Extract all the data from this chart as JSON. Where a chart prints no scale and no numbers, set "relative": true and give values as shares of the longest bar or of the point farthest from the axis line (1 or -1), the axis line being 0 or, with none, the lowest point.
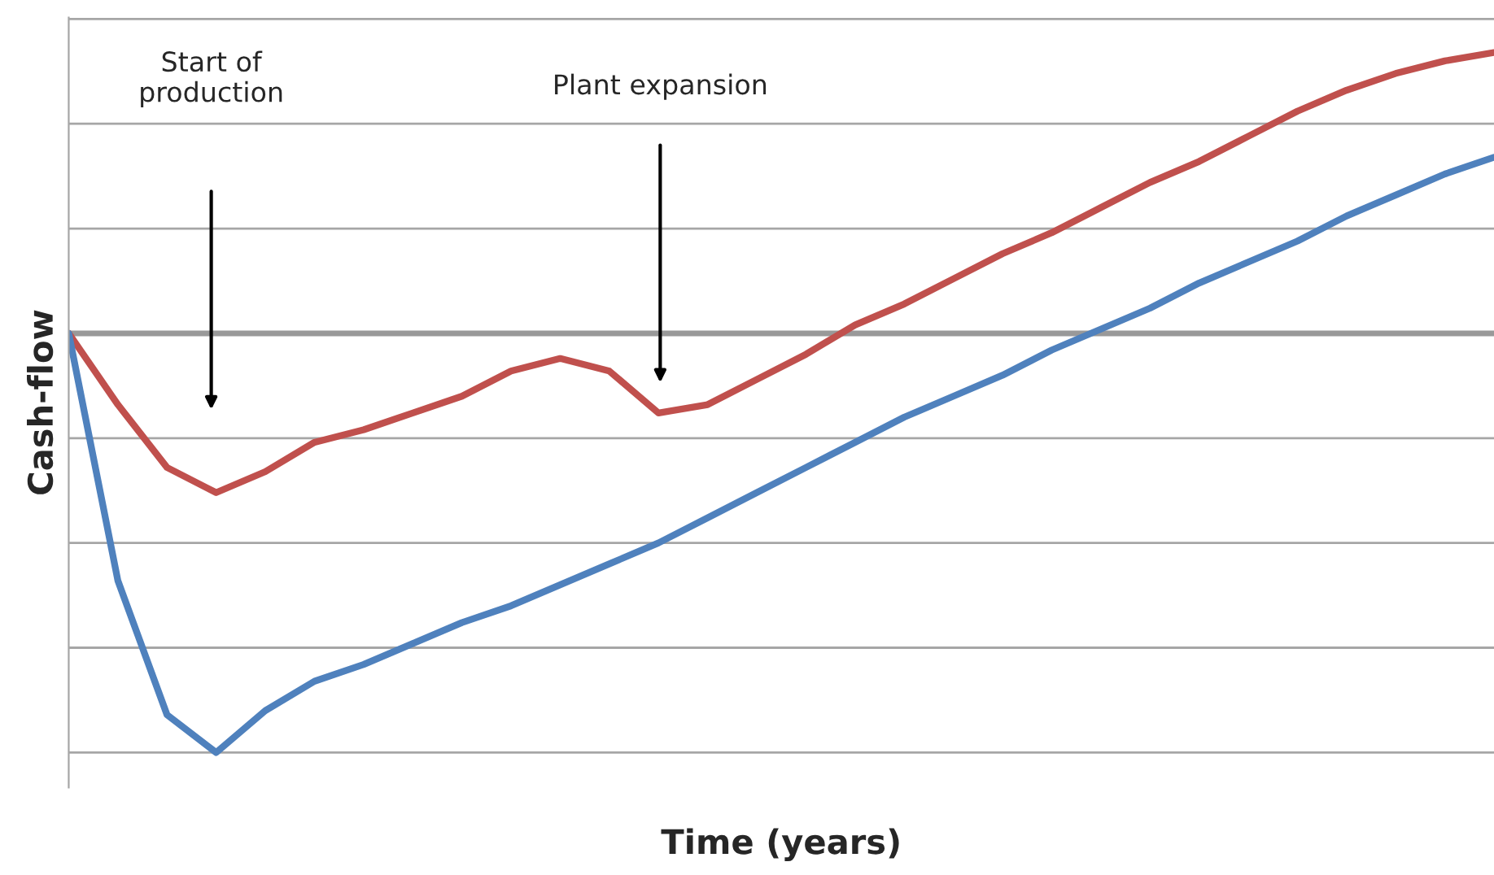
{
  "chart_data": {
    "type": "line",
    "relative": true,
    "xlabel": "Time (years)",
    "ylabel": "Cash-flow",
    "grid": "y",
    "tick_labels": false,
    "legend": false,
    "marker": "none",
    "line_style": "solid",
    "categories": [
      null,
      null,
      null,
      null,
      null,
      null,
      null,
      null,
      null,
      null,
      null,
      null,
      null,
      null,
      null,
      null,
      null,
      null,
      null,
      null,
      null,
      null,
      null,
      null,
      null,
      null,
      null,
      null,
      null,
      null
    ],
    "annotations": [
      "Start of\nproduction",
      "Plant expansion"
    ],
    "series": [
      {
        "color": "#c0504d",
        "values": [
          0,
          -0.17,
          -0.32,
          -0.38,
          -0.33,
          -0.26,
          -0.23,
          -0.19,
          -0.15,
          -0.09,
          -0.06,
          -0.09,
          -0.19,
          -0.17,
          -0.11,
          -0.05,
          0.02,
          0.07,
          0.13,
          0.19,
          0.24,
          0.3,
          0.36,
          0.41,
          0.47,
          0.53,
          0.58,
          0.62,
          0.65,
          0.67
        ]
      },
      {
        "color": "#4f81bd",
        "values": [
          0,
          -0.59,
          -0.91,
          -1,
          -0.9,
          -0.83,
          -0.79,
          -0.74,
          -0.69,
          -0.65,
          -0.6,
          -0.55,
          -0.5,
          -0.44,
          -0.38,
          -0.32,
          -0.26,
          -0.2,
          -0.15,
          -0.1,
          -0.04,
          0.01,
          0.06,
          0.12,
          0.17,
          0.22,
          0.28,
          0.33,
          0.38,
          0.42
        ]
      }
    ]
  }
}
